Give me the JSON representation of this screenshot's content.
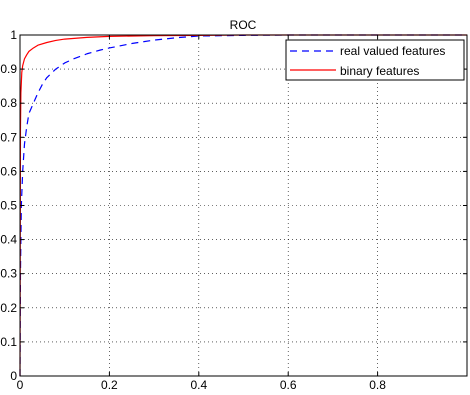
{
  "chart_data": {
    "type": "line",
    "title": "ROC",
    "xlabel": "",
    "ylabel": "",
    "xlim": [
      0,
      1
    ],
    "ylim": [
      0,
      1
    ],
    "x_ticks": [
      0,
      0.2,
      0.4,
      0.6,
      0.8
    ],
    "x_tick_labels": [
      "0",
      "0.2",
      "0.4",
      "0.6",
      "0.8"
    ],
    "y_ticks": [
      0,
      0.1,
      0.2,
      0.3,
      0.4,
      0.5,
      0.6,
      0.7,
      0.8,
      0.9,
      1
    ],
    "y_tick_labels": [
      "0",
      "0.1",
      "0.2",
      "0.3",
      "0.4",
      "0.5",
      "0.6",
      "0.7",
      "0.8",
      "0.9",
      "1"
    ],
    "grid": true,
    "legend_position": "top-right",
    "series": [
      {
        "name": "real valued features",
        "color": "#0000ff",
        "line_style": "dashed",
        "x": [
          0,
          0.001,
          0.003,
          0.006,
          0.01,
          0.015,
          0.02,
          0.03,
          0.04,
          0.05,
          0.06,
          0.08,
          0.1,
          0.12,
          0.15,
          0.18,
          0.2,
          0.25,
          0.3,
          0.35,
          0.4,
          0.5,
          0.6,
          0.7,
          0.8,
          1.0
        ],
        "y": [
          0,
          0.3,
          0.5,
          0.6,
          0.68,
          0.73,
          0.77,
          0.8,
          0.83,
          0.855,
          0.875,
          0.9,
          0.918,
          0.93,
          0.945,
          0.956,
          0.962,
          0.975,
          0.985,
          0.992,
          0.997,
          0.999,
          1.0,
          1.0,
          1.0,
          1.0
        ]
      },
      {
        "name": "binary features",
        "color": "#ff0000",
        "line_style": "solid",
        "x": [
          0,
          0.001,
          0.002,
          0.004,
          0.006,
          0.008,
          0.01,
          0.015,
          0.02,
          0.03,
          0.04,
          0.06,
          0.08,
          0.1,
          0.15,
          0.2,
          0.3,
          0.4,
          0.5,
          0.6,
          0.8,
          1.0
        ],
        "y": [
          0,
          0.72,
          0.83,
          0.89,
          0.91,
          0.92,
          0.93,
          0.942,
          0.952,
          0.962,
          0.97,
          0.978,
          0.984,
          0.988,
          0.993,
          0.996,
          0.998,
          0.999,
          1.0,
          1.0,
          1.0,
          1.0
        ]
      }
    ]
  }
}
